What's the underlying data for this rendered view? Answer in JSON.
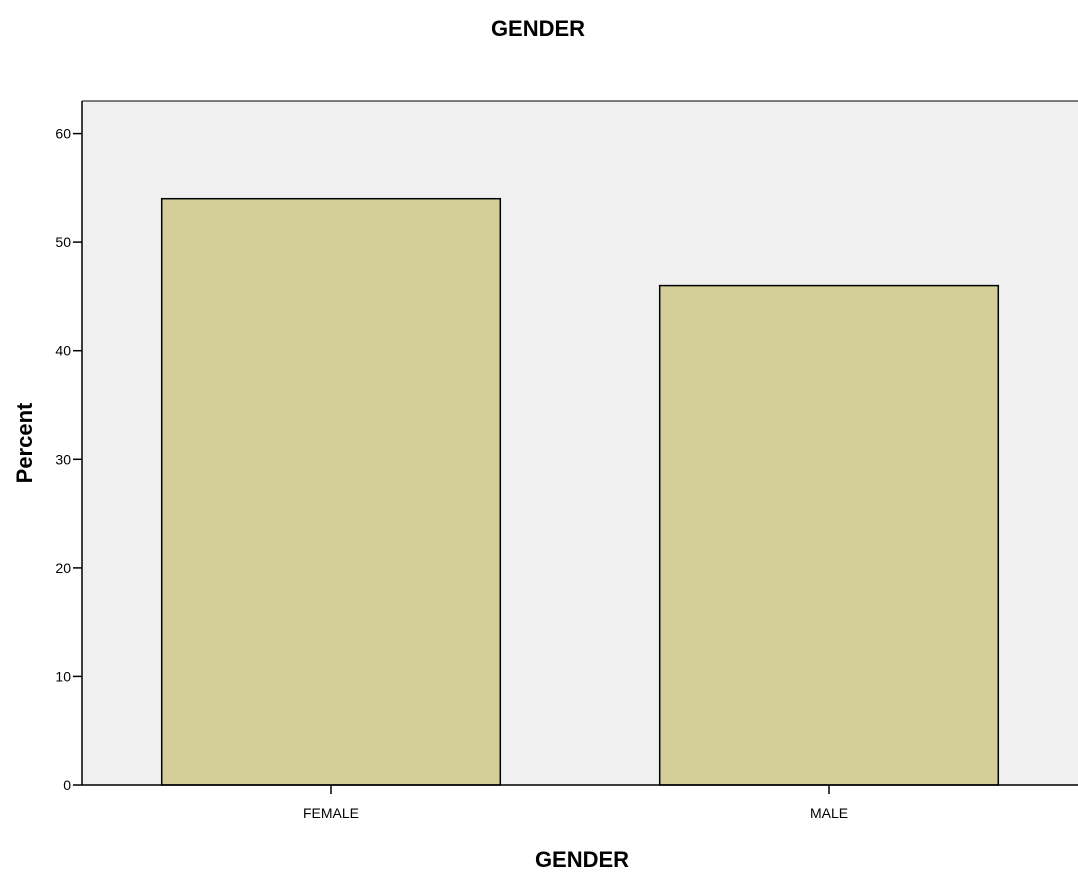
{
  "chart_data": {
    "type": "bar",
    "title": "GENDER",
    "xlabel": "GENDER",
    "ylabel": "Percent",
    "categories": [
      "FEMALE",
      "MALE"
    ],
    "values": [
      54.0,
      46.0
    ],
    "ylim": [
      0,
      63
    ],
    "yticks": [
      0,
      10,
      20,
      30,
      40,
      50,
      60
    ],
    "grid": false,
    "legend": "none",
    "colors": {
      "bar_fill": "#d3cd98",
      "bar_stroke": "#000000",
      "plot_background": "#f0f0f0"
    }
  }
}
